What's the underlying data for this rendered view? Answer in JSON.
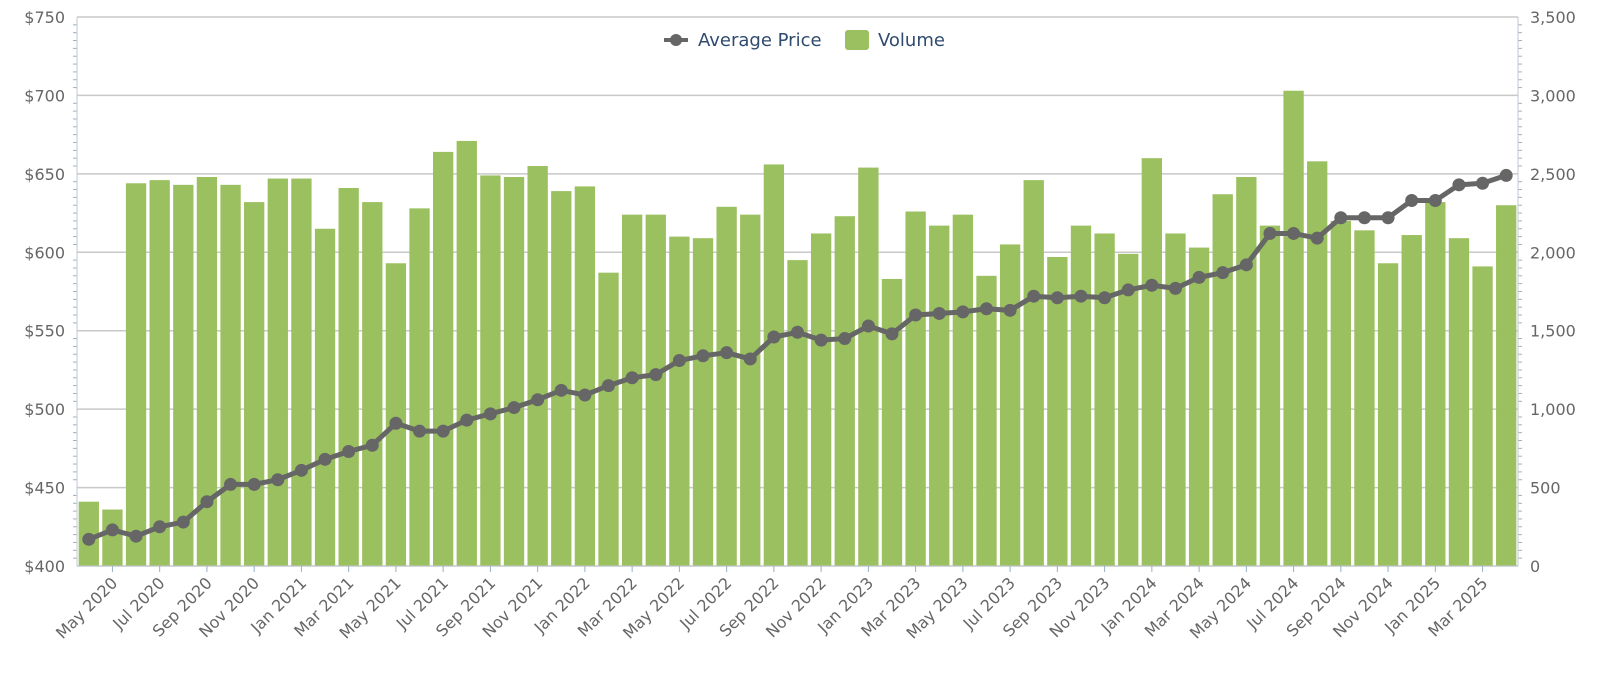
{
  "chart_data": {
    "type": "bar",
    "categories": [
      "Apr 2020",
      "May 2020",
      "Jun 2020",
      "Jul 2020",
      "Aug 2020",
      "Sep 2020",
      "Oct 2020",
      "Nov 2020",
      "Dec 2020",
      "Jan 2021",
      "Feb 2021",
      "Mar 2021",
      "Apr 2021",
      "May 2021",
      "Jun 2021",
      "Jul 2021",
      "Aug 2021",
      "Sep 2021",
      "Oct 2021",
      "Nov 2021",
      "Dec 2021",
      "Jan 2022",
      "Feb 2022",
      "Mar 2022",
      "Apr 2022",
      "May 2022",
      "Jun 2022",
      "Jul 2022",
      "Aug 2022",
      "Sep 2022",
      "Oct 2022",
      "Nov 2022",
      "Dec 2022",
      "Jan 2023",
      "Feb 2023",
      "Mar 2023",
      "Apr 2023",
      "May 2023",
      "Jun 2023",
      "Jul 2023",
      "Aug 2023",
      "Sep 2023",
      "Oct 2023",
      "Nov 2023",
      "Dec 2023",
      "Jan 2024",
      "Feb 2024",
      "Mar 2024",
      "Apr 2024",
      "May 2024",
      "Jun 2024",
      "Jul 2024",
      "Aug 2024",
      "Sep 2024",
      "Oct 2024",
      "Nov 2024",
      "Dec 2024",
      "Jan 2025",
      "Feb 2025",
      "Mar 2025",
      "Apr 2025"
    ],
    "x_tick_labels": [
      "May 2020",
      "Jul 2020",
      "Sep 2020",
      "Nov 2020",
      "Jan 2021",
      "Mar 2021",
      "May 2021",
      "Jul 2021",
      "Sep 2021",
      "Nov 2021",
      "Jan 2022",
      "Mar 2022",
      "May 2022",
      "Jul 2022",
      "Sep 2022",
      "Nov 2022",
      "Jan 2023",
      "Mar 2023",
      "May 2023",
      "Jul 2023",
      "Sep 2023",
      "Nov 2023",
      "Jan 2024",
      "Mar 2024",
      "May 2024",
      "Jul 2024",
      "Sep 2024",
      "Nov 2024",
      "Jan 2025",
      "Mar 2025"
    ],
    "series": [
      {
        "name": "Volume",
        "type": "bar",
        "axis": "right",
        "color": "#9bc060",
        "values": [
          410,
          360,
          2440,
          2460,
          2430,
          2480,
          2430,
          2320,
          2470,
          2470,
          2150,
          2410,
          2320,
          1930,
          2280,
          2640,
          2710,
          2490,
          2480,
          2550,
          2390,
          2420,
          1870,
          2240,
          2240,
          2100,
          2090,
          2290,
          2240,
          2560,
          1950,
          2120,
          2230,
          2540,
          1830,
          2260,
          2170,
          2240,
          1850,
          2050,
          2460,
          1970,
          2170,
          2120,
          1990,
          2600,
          2120,
          2030,
          2370,
          2480,
          2170,
          3030,
          2580,
          2200,
          2140,
          1930,
          2110,
          2320,
          2090,
          1910,
          2300
        ]
      },
      {
        "name": "Average Price",
        "type": "line",
        "axis": "left",
        "color": "#666666",
        "values": [
          417,
          423,
          419,
          425,
          428,
          441,
          452,
          452,
          455,
          461,
          468,
          473,
          477,
          491,
          486,
          486,
          493,
          497,
          501,
          506,
          512,
          509,
          515,
          520,
          522,
          531,
          534,
          536,
          532,
          546,
          549,
          544,
          545,
          553,
          548,
          560,
          561,
          562,
          564,
          563,
          572,
          571,
          572,
          571,
          576,
          579,
          577,
          584,
          587,
          592,
          612,
          612,
          609,
          622,
          622,
          622,
          633,
          633,
          643,
          644,
          649
        ]
      }
    ],
    "ylim_left": [
      400,
      750
    ],
    "ylim_right": [
      0,
      3500
    ],
    "y_left_ticks": [
      "$400",
      "$450",
      "$500",
      "$550",
      "$600",
      "$650",
      "$700",
      "$750"
    ],
    "y_right_ticks": [
      "0",
      "500",
      "1,000",
      "1,500",
      "2,000",
      "2,500",
      "3,000",
      "3,500"
    ],
    "legend": {
      "position": "top-center",
      "entries": [
        "Average Price",
        "Volume"
      ]
    },
    "grid": true,
    "title": "",
    "xlabel": "",
    "ylabel_left": "",
    "ylabel_right": ""
  }
}
